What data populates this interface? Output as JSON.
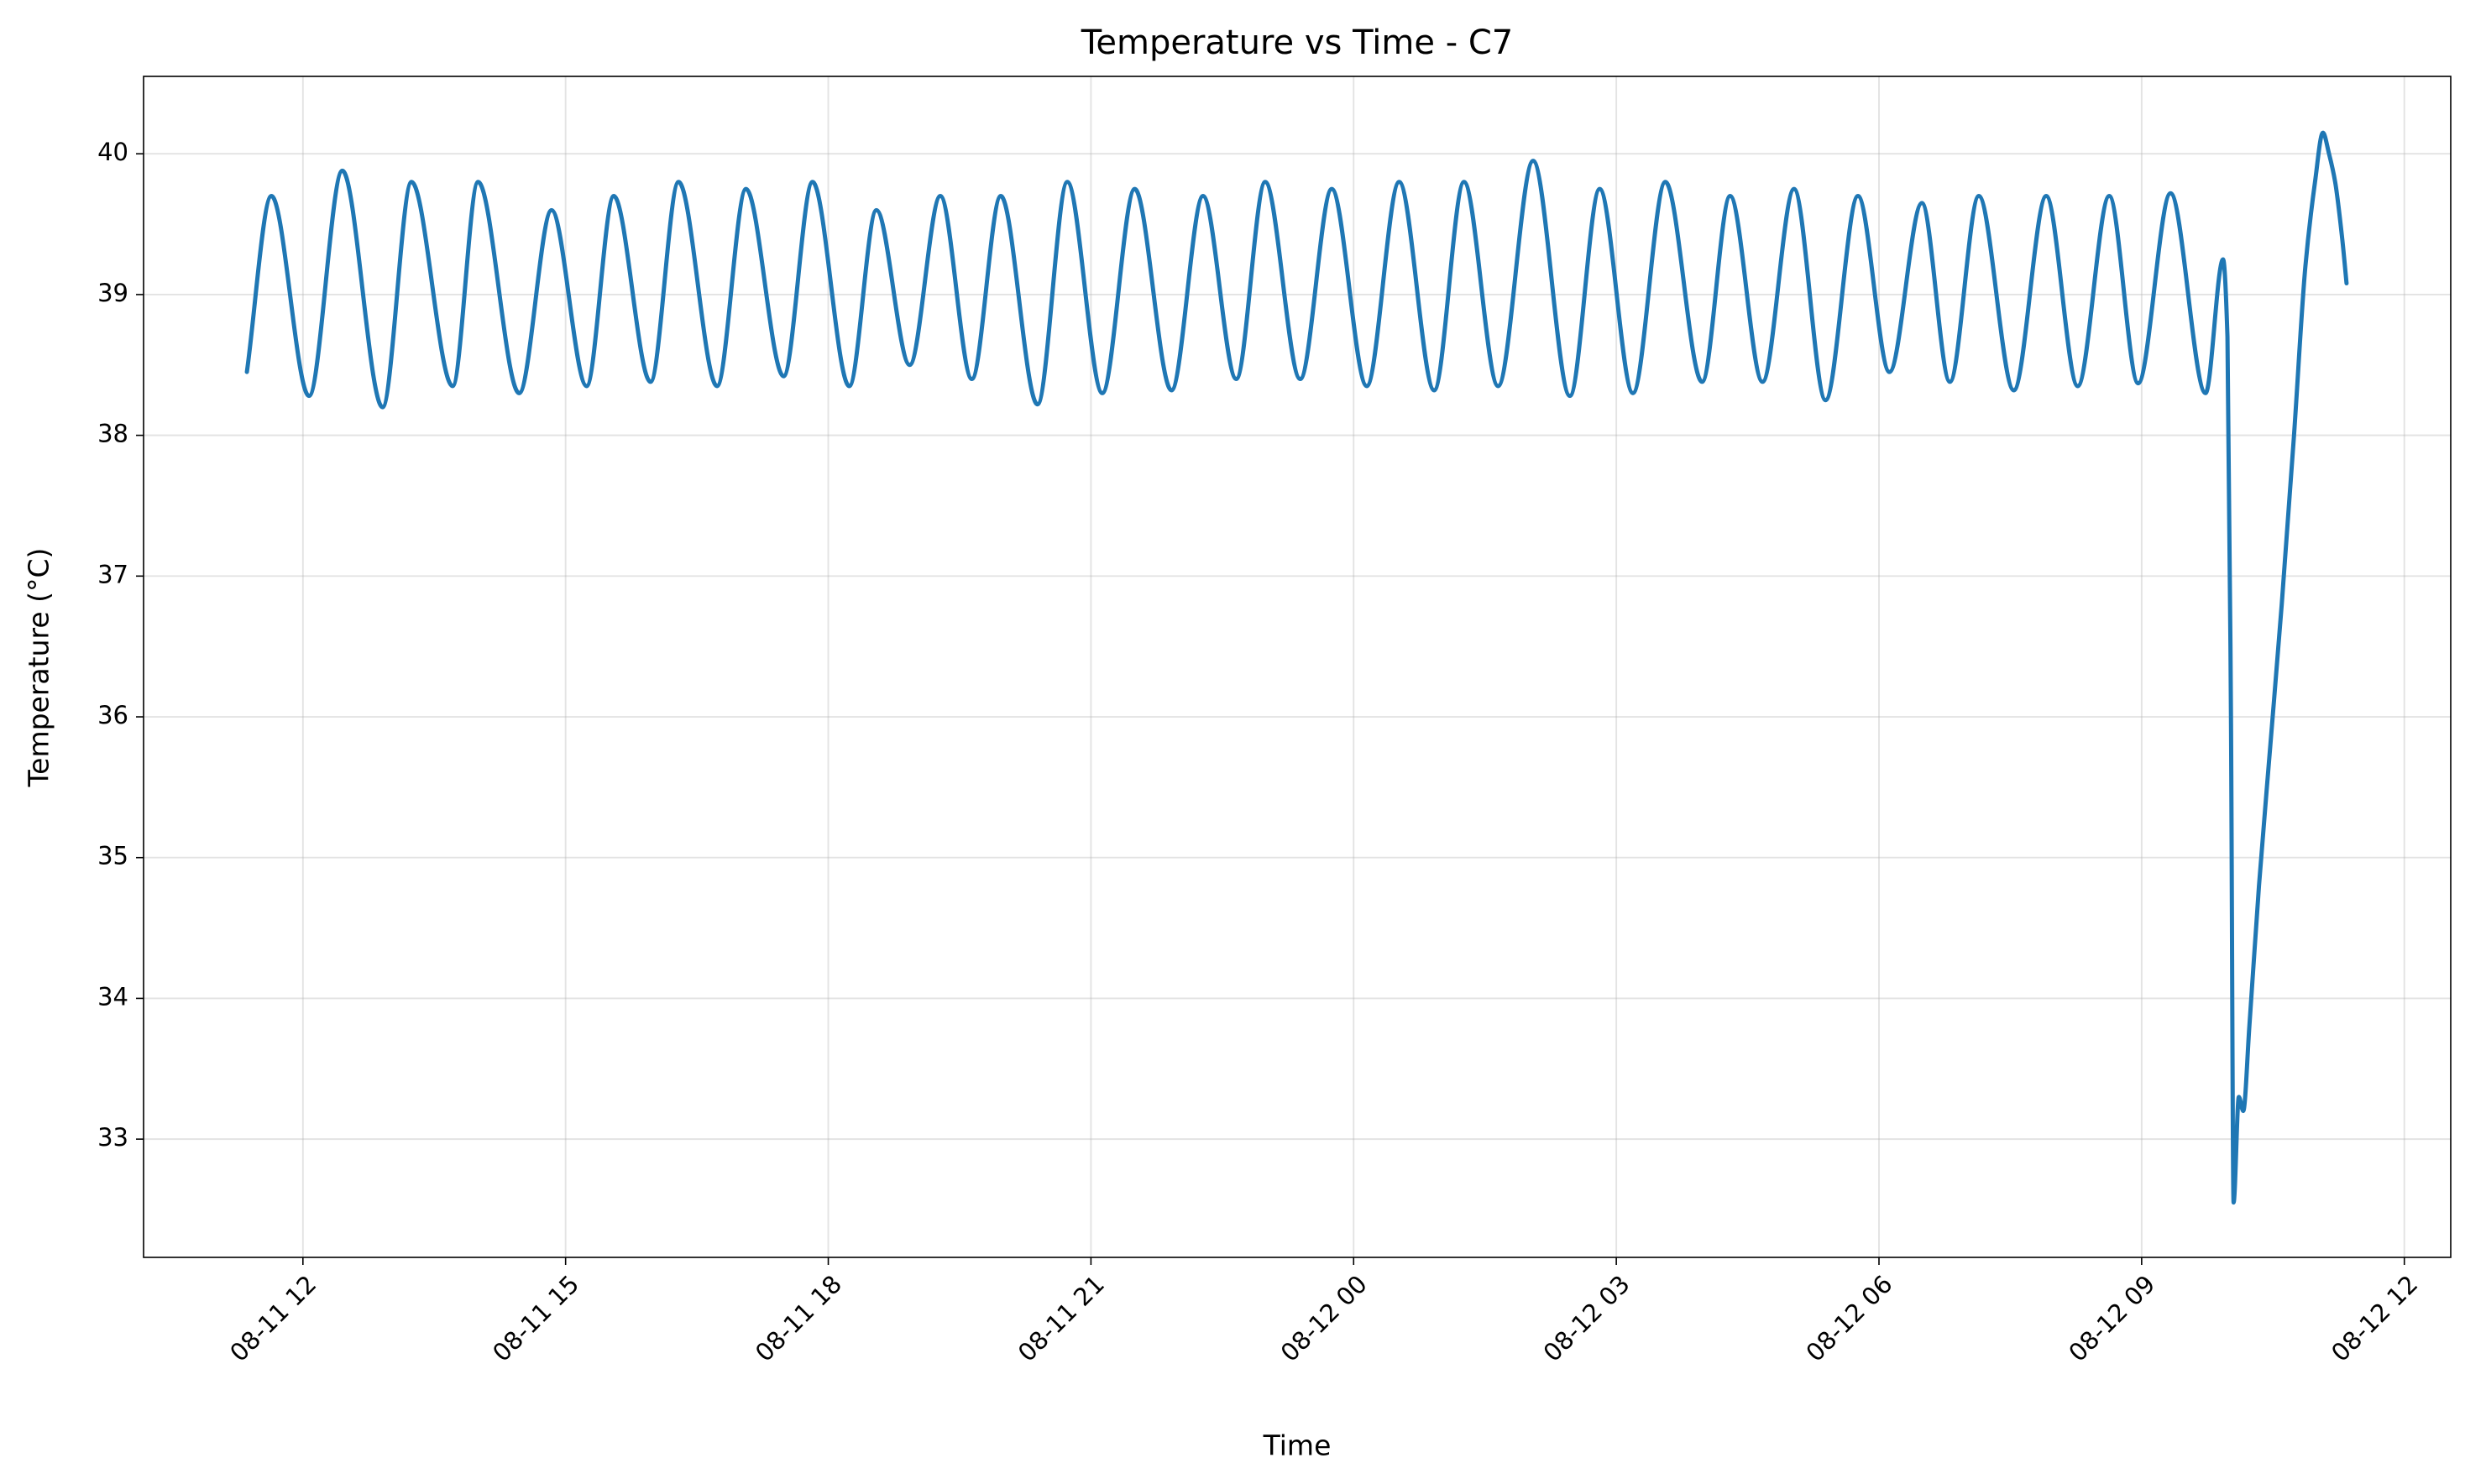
{
  "chart_data": {
    "type": "line",
    "title": "Temperature vs Time - C7",
    "xlabel": "Time",
    "ylabel": "Temperature (°C)",
    "x": [
      11.36,
      11.64,
      12.07,
      12.45,
      12.91,
      13.24,
      13.71,
      14.0,
      14.47,
      14.84,
      15.24,
      15.55,
      15.97,
      16.29,
      16.73,
      17.06,
      17.49,
      17.82,
      18.24,
      18.55,
      18.93,
      19.28,
      19.64,
      19.97,
      20.39,
      20.73,
      21.13,
      21.5,
      21.92,
      22.28,
      22.66,
      22.99,
      23.39,
      23.75,
      24.15,
      24.52,
      24.92,
      25.26,
      25.65,
      26.05,
      26.47,
      26.81,
      27.19,
      27.56,
      27.98,
      28.3,
      28.67,
      29.03,
      29.39,
      29.76,
      30.12,
      30.49,
      30.81,
      31.14,
      31.54,
      31.91,
      32.27,
      32.63,
      32.96,
      33.33,
      33.73,
      33.93,
      33.98,
      34.02,
      34.05,
      34.11,
      34.16,
      34.23,
      34.34,
      34.47,
      34.6,
      34.74,
      34.87,
      34.98,
      35.07,
      35.14,
      35.21,
      35.29,
      35.34
    ],
    "values": [
      38.45,
      39.7,
      38.28,
      39.88,
      38.2,
      39.8,
      38.35,
      39.8,
      38.3,
      39.6,
      38.35,
      39.7,
      38.38,
      39.8,
      38.35,
      39.75,
      38.42,
      39.8,
      38.35,
      39.6,
      38.5,
      39.7,
      38.4,
      39.7,
      38.22,
      39.8,
      38.3,
      39.75,
      38.32,
      39.7,
      38.4,
      39.8,
      38.4,
      39.75,
      38.35,
      39.8,
      38.32,
      39.8,
      38.35,
      39.95,
      38.28,
      39.75,
      38.3,
      39.8,
      38.38,
      39.7,
      38.38,
      39.75,
      38.25,
      39.7,
      38.45,
      39.65,
      38.38,
      39.7,
      38.32,
      39.7,
      38.35,
      39.7,
      38.37,
      39.72,
      38.3,
      39.25,
      38.7,
      36,
      32.55,
      33.3,
      33.2,
      33.8,
      34.8,
      35.8,
      36.8,
      38,
      39.2,
      39.8,
      40.15,
      40.0,
      39.8,
      39.4,
      39.08
    ],
    "color": "#1f77b4",
    "xlim": [
      10.18,
      36.53
    ],
    "xticks": [
      {
        "value": 12,
        "label": "08-11 12"
      },
      {
        "value": 15,
        "label": "08-11 15"
      },
      {
        "value": 18,
        "label": "08-11 18"
      },
      {
        "value": 21,
        "label": "08-11 21"
      },
      {
        "value": 24,
        "label": "08-12 00"
      },
      {
        "value": 27,
        "label": "08-12 03"
      },
      {
        "value": 30,
        "label": "08-12 06"
      },
      {
        "value": 33,
        "label": "08-12 09"
      },
      {
        "value": 36,
        "label": "08-12 12"
      }
    ],
    "ylim": [
      32.16,
      40.55
    ],
    "yticks": [
      33,
      34,
      35,
      36,
      37,
      38,
      39,
      40
    ],
    "grid": true
  }
}
